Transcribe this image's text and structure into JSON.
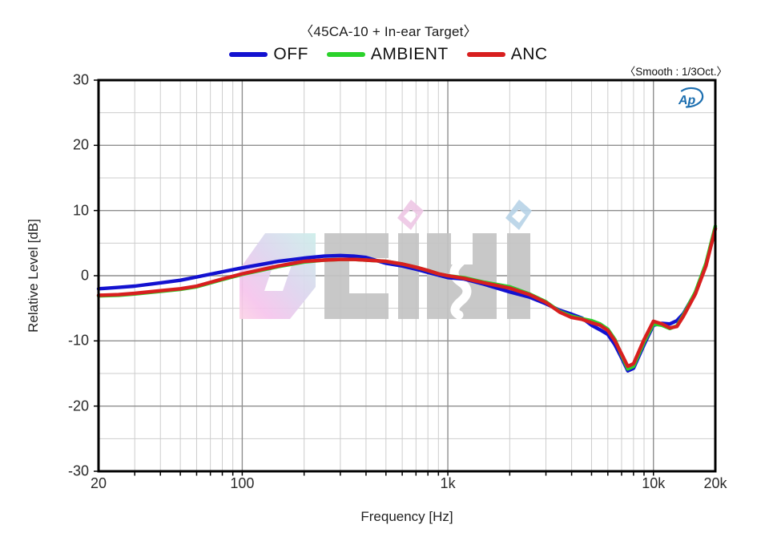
{
  "chart_data": {
    "type": "line",
    "title": "〈45CA-10 + In-ear Target〉",
    "smooth_note": "〈Smooth : 1/3Oct.〉",
    "ap_logo_text": "Ap",
    "icons": {
      "ap_logo": "audio-precision-swoosh-logo",
      "watermark": "0db-korean-audio-logo"
    },
    "xlabel": "Frequency [Hz]",
    "ylabel": "Relative Level [dB]",
    "x_scale": "log",
    "xlim": [
      20,
      20000
    ],
    "ylim": [
      -30,
      30
    ],
    "grid": "on",
    "legend_position": "top-center",
    "colors": {
      "ap_logo": "#1d6fb0",
      "grid_minor": "#cdcdcd",
      "grid_major": "#8f8f8f",
      "frame": "#000000"
    },
    "x_major_ticks": [
      {
        "value": 20,
        "label": "20"
      },
      {
        "value": 100,
        "label": "100"
      },
      {
        "value": 1000,
        "label": "1k"
      },
      {
        "value": 10000,
        "label": "10k"
      },
      {
        "value": 20000,
        "label": "20k"
      }
    ],
    "y_major_ticks": [
      {
        "value": 30,
        "label": "30"
      },
      {
        "value": 20,
        "label": "20"
      },
      {
        "value": 10,
        "label": "10"
      },
      {
        "value": 0,
        "label": "0"
      },
      {
        "value": -10,
        "label": "-10"
      },
      {
        "value": -20,
        "label": "-20"
      },
      {
        "value": -30,
        "label": "-30"
      }
    ],
    "x_minor_gridlines": [
      30,
      40,
      50,
      60,
      70,
      80,
      90,
      200,
      300,
      400,
      500,
      600,
      700,
      800,
      900,
      2000,
      3000,
      4000,
      5000,
      6000,
      7000,
      8000,
      9000
    ],
    "x_major_gridlines": [
      100,
      1000,
      10000
    ],
    "y_minor_gridlines": [
      25,
      15,
      5,
      -5,
      -15,
      -25
    ],
    "y_major_gridlines": [
      20,
      10,
      0,
      -10,
      -20
    ],
    "frequencies": [
      20,
      25,
      30,
      40,
      50,
      60,
      80,
      100,
      150,
      200,
      250,
      300,
      350,
      400,
      500,
      600,
      700,
      800,
      900,
      1000,
      1200,
      1500,
      2000,
      2500,
      3000,
      3500,
      4000,
      4500,
      5000,
      5500,
      6000,
      6500,
      7000,
      7500,
      8000,
      9000,
      10000,
      11000,
      12000,
      13000,
      14000,
      16000,
      18000,
      20000
    ],
    "series": [
      {
        "name": "OFF",
        "color": "#1312d0",
        "values": [
          -2.0,
          -1.8,
          -1.6,
          -1.1,
          -0.7,
          -0.2,
          0.6,
          1.2,
          2.2,
          2.7,
          3.0,
          3.1,
          3.0,
          2.8,
          1.9,
          1.5,
          1.0,
          0.5,
          0.1,
          -0.3,
          -0.5,
          -1.3,
          -2.5,
          -3.3,
          -4.3,
          -5.3,
          -5.9,
          -6.5,
          -7.6,
          -8.3,
          -9.0,
          -10.6,
          -12.6,
          -14.6,
          -14.2,
          -10.6,
          -7.6,
          -7.3,
          -7.4,
          -6.9,
          -5.8,
          -2.6,
          1.8,
          7.3
        ]
      },
      {
        "name": "AMBIENT",
        "color": "#2bd22b",
        "values": [
          -3.1,
          -3.0,
          -2.8,
          -2.4,
          -2.1,
          -1.7,
          -0.6,
          0.2,
          1.4,
          2.1,
          2.4,
          2.5,
          2.5,
          2.4,
          2.2,
          1.8,
          1.3,
          0.8,
          0.3,
          0.0,
          -0.3,
          -1.0,
          -1.7,
          -2.8,
          -4.0,
          -5.5,
          -6.2,
          -6.6,
          -6.9,
          -7.4,
          -8.2,
          -9.8,
          -12.2,
          -14.3,
          -13.9,
          -10.2,
          -7.4,
          -7.6,
          -8.1,
          -7.7,
          -6.0,
          -2.5,
          1.9,
          7.6
        ]
      },
      {
        "name": "ANC",
        "color": "#d81f1f",
        "values": [
          -3.0,
          -2.9,
          -2.7,
          -2.3,
          -2.0,
          -1.6,
          -0.5,
          0.3,
          1.5,
          2.2,
          2.4,
          2.5,
          2.5,
          2.4,
          2.2,
          1.8,
          1.3,
          0.8,
          0.3,
          0.0,
          -0.4,
          -1.1,
          -1.9,
          -2.9,
          -4.1,
          -5.6,
          -6.4,
          -6.7,
          -7.2,
          -7.6,
          -8.4,
          -10.0,
          -12.0,
          -13.9,
          -13.5,
          -9.8,
          -7.0,
          -7.4,
          -8.0,
          -7.8,
          -6.2,
          -2.8,
          1.5,
          7.2
        ]
      }
    ]
  }
}
